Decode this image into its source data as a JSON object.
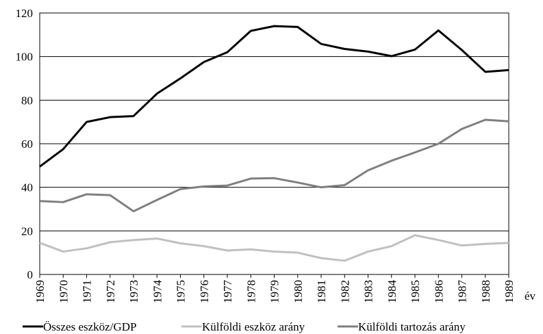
{
  "chart_data": {
    "type": "line",
    "x_label": "év",
    "categories": [
      "1969",
      "1970",
      "1971",
      "1972",
      "1973",
      "1974",
      "1975",
      "1976",
      "1977",
      "1978",
      "1979",
      "1980",
      "1981",
      "1982",
      "1983",
      "1984",
      "1985",
      "1986",
      "1987",
      "1988",
      "1989"
    ],
    "series": [
      {
        "name": "Összes eszköz/GDP",
        "color": "#000000",
        "values": [
          49.5,
          57.5,
          70,
          72.2,
          72.7,
          83,
          90,
          97.5,
          102,
          111.8,
          114,
          113.6,
          105.8,
          103.5,
          102.3,
          100.2,
          103.2,
          112,
          103,
          93,
          93.8
        ]
      },
      {
        "name": "Külföldi eszköz arány",
        "color": "#c0c0c0",
        "values": [
          14.5,
          10.5,
          12,
          14.8,
          15.8,
          16.5,
          14.3,
          13,
          11,
          11.5,
          10.5,
          10,
          7.5,
          6.3,
          10.5,
          13,
          18,
          15.8,
          13.3,
          14,
          14.5
        ]
      },
      {
        "name": "Külföldi tartozás arány",
        "color": "#7f7f7f",
        "values": [
          33.7,
          33.2,
          36.8,
          36.4,
          29,
          34.2,
          39.2,
          40.4,
          40.8,
          44,
          44.2,
          42.2,
          40,
          41,
          47.8,
          52.2,
          56,
          60,
          66.8,
          71,
          70.3
        ]
      }
    ],
    "ylim": [
      0,
      120
    ],
    "yticks": [
      0,
      20,
      40,
      60,
      80,
      100,
      120
    ],
    "grid": true
  }
}
